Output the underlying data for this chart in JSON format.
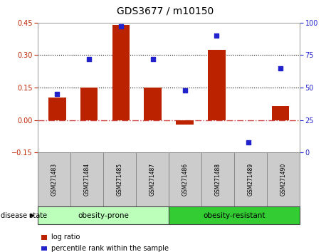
{
  "title": "GDS3677 / m10150",
  "samples": [
    "GSM271483",
    "GSM271484",
    "GSM271485",
    "GSM271487",
    "GSM271486",
    "GSM271488",
    "GSM271489",
    "GSM271490"
  ],
  "log_ratio": [
    0.105,
    0.15,
    0.44,
    0.15,
    -0.02,
    0.325,
    0,
    0.065
  ],
  "percentile_rank": [
    45,
    72,
    97,
    72,
    48,
    90,
    8,
    65
  ],
  "left_ylim": [
    -0.15,
    0.45
  ],
  "right_ylim": [
    0,
    100
  ],
  "left_yticks": [
    -0.15,
    0,
    0.15,
    0.3,
    0.45
  ],
  "right_yticks": [
    0,
    25,
    50,
    75,
    100
  ],
  "hlines": [
    0.15,
    0.3
  ],
  "bar_color": "#bb2200",
  "scatter_color": "#2222cc",
  "zero_line_color": "#cc4444",
  "group1_label": "obesity-prone",
  "group2_label": "obesity-resistant",
  "group1_color": "#bbffbb",
  "group2_color": "#33cc33",
  "group1_indices": [
    0,
    1,
    2,
    3
  ],
  "group2_indices": [
    4,
    5,
    6,
    7
  ],
  "disease_state_label": "disease state",
  "legend_bar_label": "log ratio",
  "legend_scatter_label": "percentile rank within the sample",
  "background_color": "#ffffff",
  "plot_bg_color": "#ffffff",
  "tick_label_fontsize": 7,
  "title_fontsize": 10,
  "fig_width": 4.65,
  "fig_height": 3.54,
  "dpi": 100
}
